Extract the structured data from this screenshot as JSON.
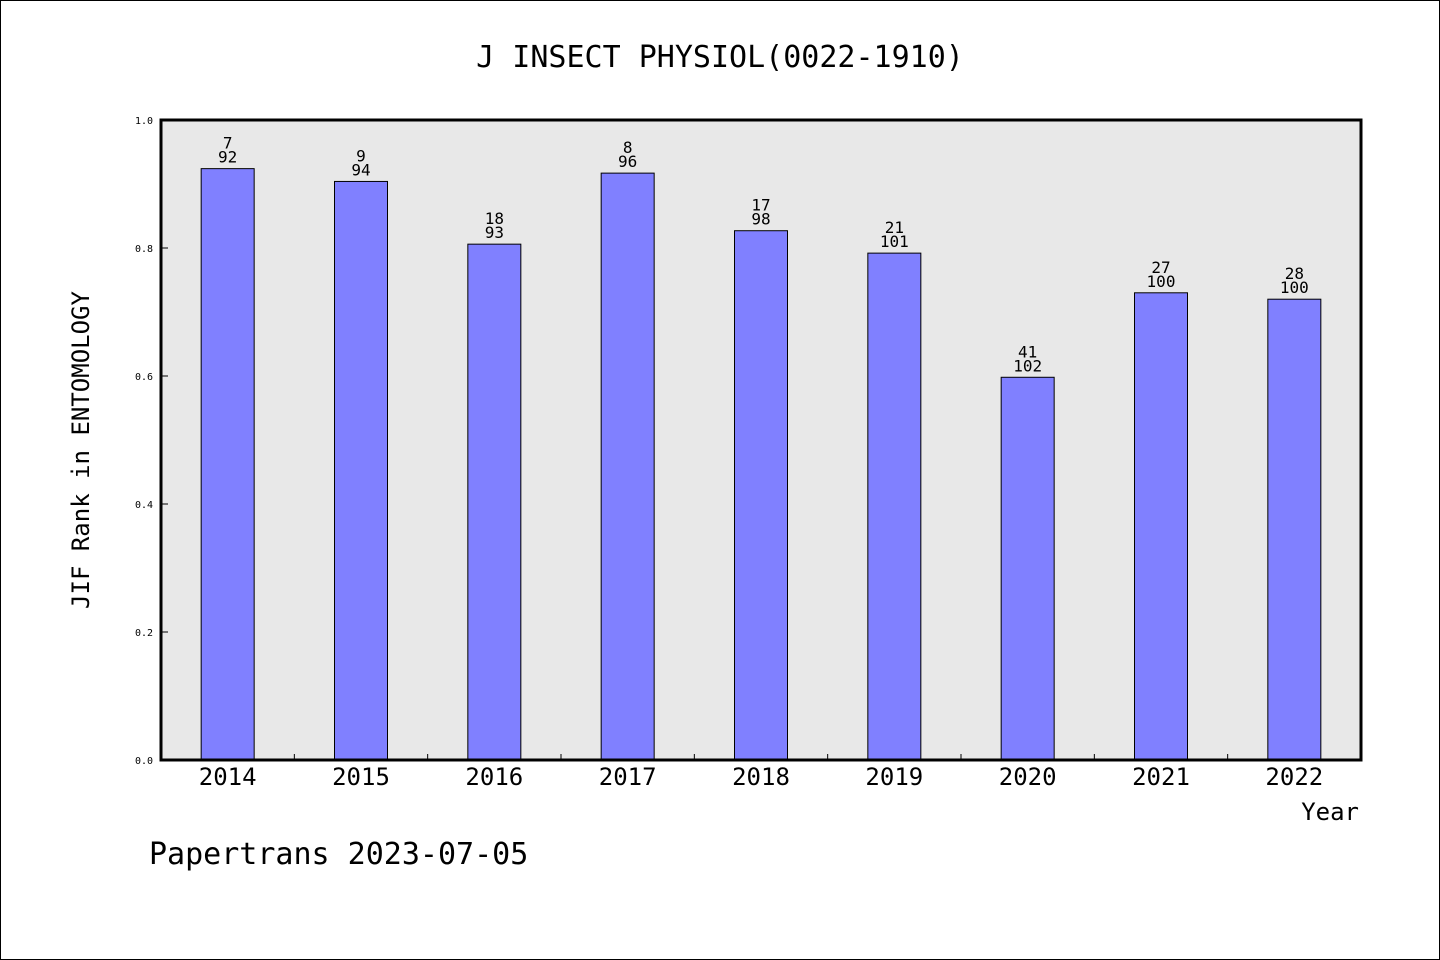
{
  "chart_data": {
    "type": "bar",
    "title": "J INSECT PHYSIOL(0022-1910)",
    "xlabel": "Year",
    "ylabel": "JIF Rank in ENTOMOLOGY",
    "ylim": [
      0,
      1.0
    ],
    "y_ticks": [
      "0.0",
      "0.2",
      "0.4",
      "0.6",
      "0.8",
      "1.0"
    ],
    "grid": false,
    "categories": [
      "2014",
      "2015",
      "2016",
      "2017",
      "2018",
      "2019",
      "2020",
      "2021",
      "2022"
    ],
    "values": [
      0.924,
      0.904,
      0.806,
      0.917,
      0.827,
      0.792,
      0.598,
      0.73,
      0.72
    ],
    "rank_labels": [
      "7",
      "9",
      "18",
      "8",
      "17",
      "21",
      "41",
      "27",
      "28"
    ],
    "total_labels": [
      "92",
      "94",
      "93",
      "96",
      "98",
      "101",
      "102",
      "100",
      "100"
    ],
    "bar_color": "#8080ff",
    "plot_background": "#e8e8e8"
  },
  "footer": "Papertrans 2023-07-05"
}
